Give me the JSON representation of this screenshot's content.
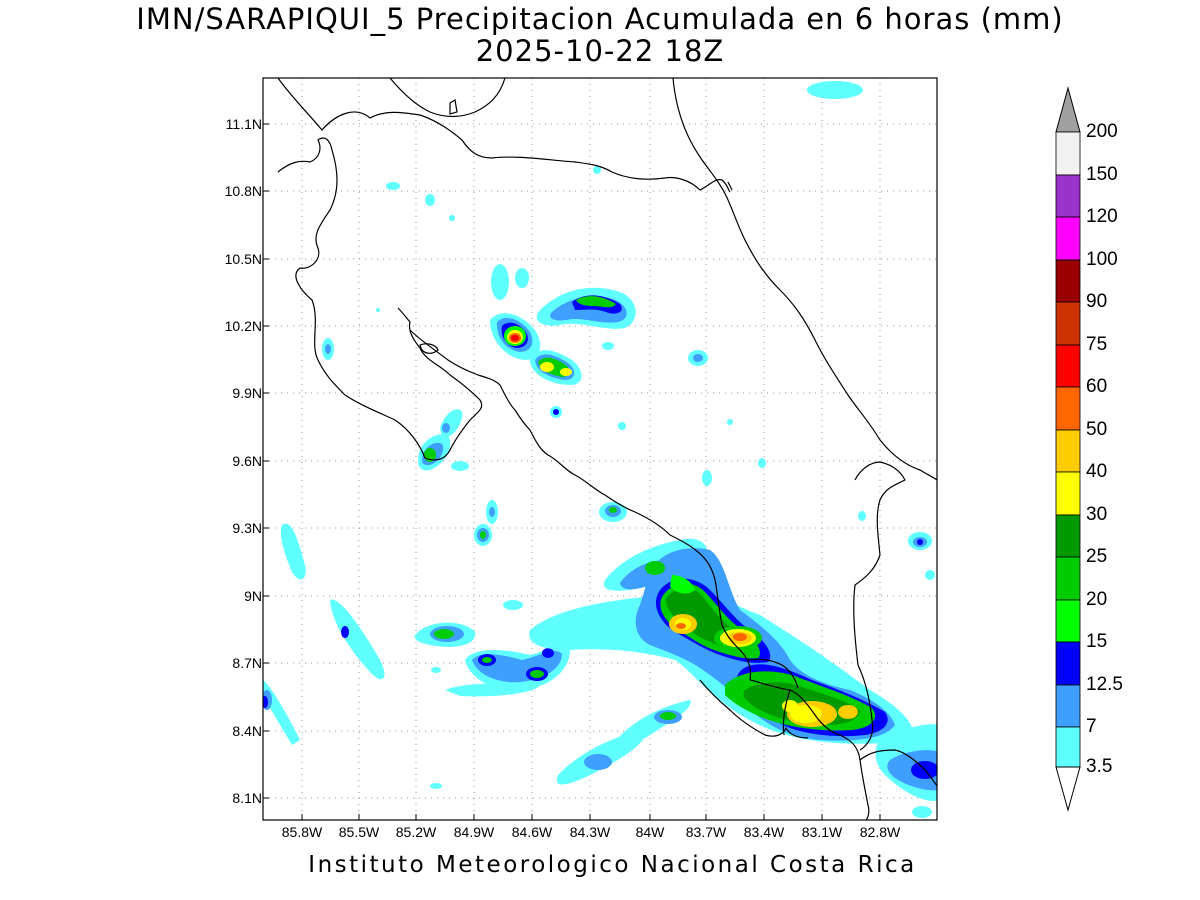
{
  "title": "IMN/SARAPIQUI_5 Precipitacion Acumulada en 6 horas (mm)",
  "subtitle": "2025-10-22 18Z",
  "credit": "Instituto Meteorologico Nacional Costa Rica",
  "map": {
    "lat_labels": [
      "11.1N",
      "10.8N",
      "10.5N",
      "10.2N",
      "9.9N",
      "9.6N",
      "9.3N",
      "9N",
      "8.7N",
      "8.4N",
      "8.1N"
    ],
    "lon_labels": [
      "85.8W",
      "85.5W",
      "85.2W",
      "84.9W",
      "84.6W",
      "84.3W",
      "84W",
      "83.7W",
      "83.4W",
      "83.1W",
      "82.8W"
    ]
  },
  "colorbar": {
    "units": "mm",
    "levels": [
      "3.5",
      "7",
      "12.5",
      "15",
      "20",
      "25",
      "30",
      "40",
      "50",
      "60",
      "75",
      "90",
      "100",
      "120",
      "150",
      "200"
    ],
    "colors": {
      "c3_5": "#60ffff",
      "c7": "#3f9fff",
      "c12_5": "#0000ff",
      "c15": "#00ff00",
      "c20": "#00cc00",
      "c25": "#009900",
      "c30": "#ffff00",
      "c40": "#ffcc00",
      "c50": "#ff6600",
      "c60": "#ff0000",
      "c75": "#cc3300",
      "c90": "#990000",
      "c100": "#ff00ff",
      "c120": "#9933cc",
      "c150": "#f2f2f2",
      "c200": "#a0a0a0"
    }
  }
}
